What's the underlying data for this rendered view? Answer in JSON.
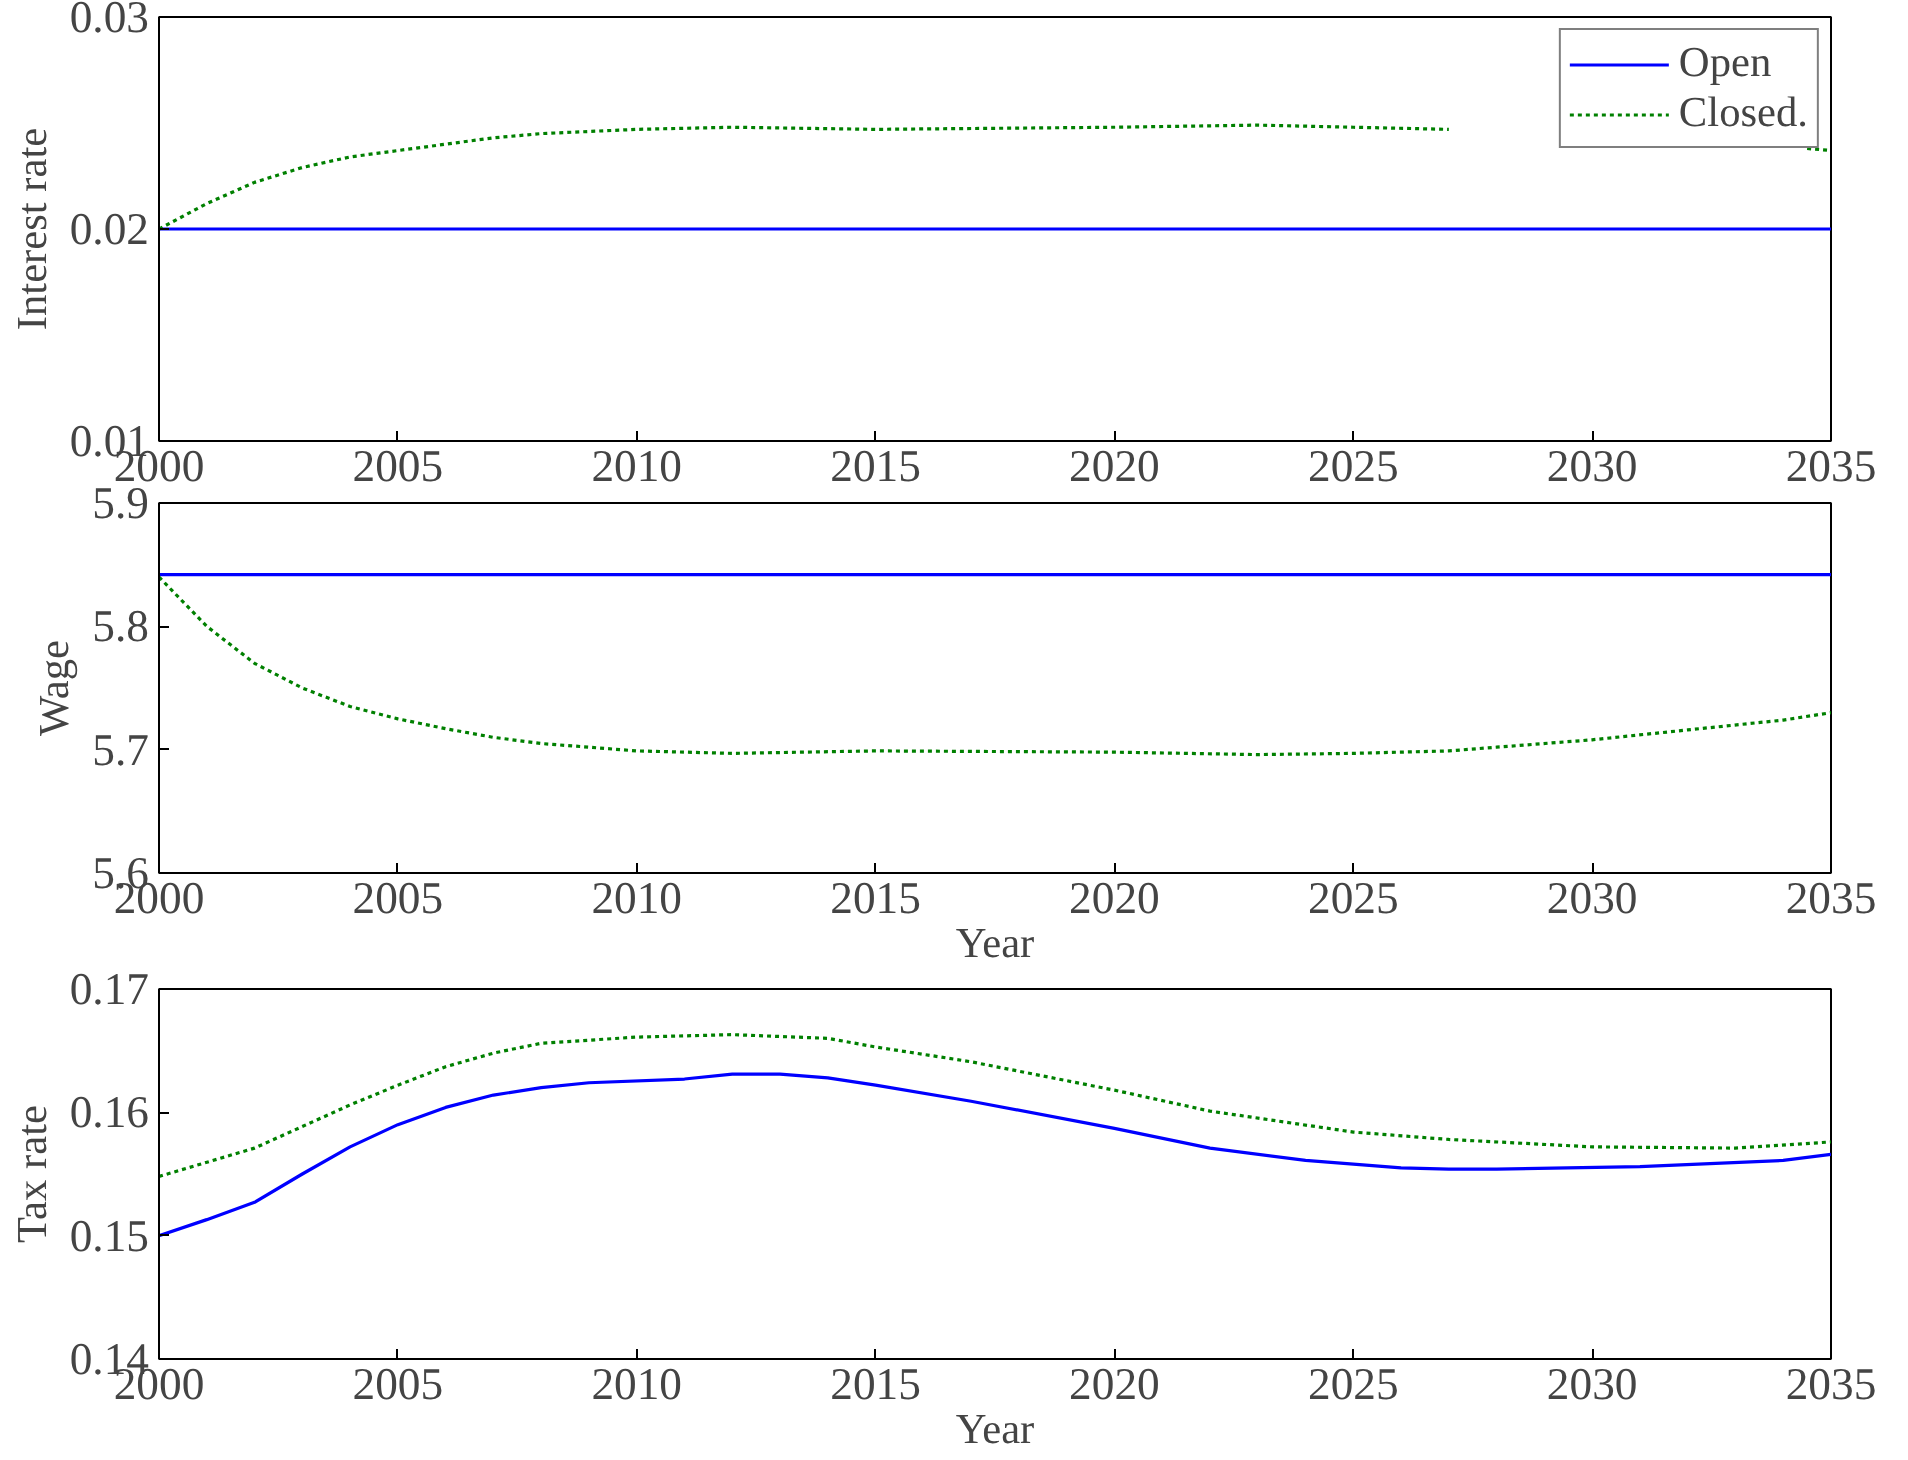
{
  "chart_data": [
    {
      "type": "line",
      "ylabel": "Interest rate",
      "x": [
        2000,
        2001,
        2002,
        2003,
        2004,
        2005,
        2006,
        2007,
        2008,
        2010,
        2012,
        2015,
        2020,
        2023,
        2025,
        2027,
        2030,
        2033,
        2034.5,
        2035
      ],
      "xlim": [
        2000,
        2035
      ],
      "ylim": [
        0.01,
        0.03
      ],
      "xticks": [
        2000,
        2005,
        2010,
        2015,
        2020,
        2025,
        2030,
        2035
      ],
      "yticks": [
        0.01,
        0.02,
        0.03
      ],
      "legend": "top right",
      "series": [
        {
          "name": "Open",
          "color": "#0000ff",
          "line_style": "solid",
          "values": [
            0.02,
            0.02,
            0.02,
            0.02,
            0.02,
            0.02,
            0.02,
            0.02,
            0.02,
            0.02,
            0.02,
            0.02,
            0.02,
            0.02,
            0.02,
            0.02,
            0.02,
            0.02,
            0.02,
            0.02
          ]
        },
        {
          "name": "Closed.",
          "color": "#008000",
          "line_style": "dotted",
          "values": [
            0.02,
            0.0212,
            0.0222,
            0.0229,
            0.0234,
            0.0237,
            0.024,
            0.0243,
            0.0245,
            0.0247,
            0.0248,
            0.0247,
            0.0248,
            0.0249,
            0.0248,
            0.0247,
            null,
            null,
            0.0238,
            0.0237
          ]
        }
      ]
    },
    {
      "type": "line",
      "ylabel": "Wage",
      "xlabel": "Year",
      "x": [
        2000,
        2001,
        2002,
        2003,
        2004,
        2005,
        2006,
        2007,
        2008,
        2010,
        2012,
        2015,
        2020,
        2023,
        2025,
        2027,
        2028,
        2030,
        2032,
        2034,
        2035
      ],
      "xlim": [
        2000,
        2035
      ],
      "ylim": [
        5.6,
        5.9
      ],
      "xticks": [
        2000,
        2005,
        2010,
        2015,
        2020,
        2025,
        2030,
        2035
      ],
      "yticks": [
        5.6,
        5.7,
        5.8,
        5.9
      ],
      "series": [
        {
          "color": "#0000ff",
          "line_style": "solid",
          "values": [
            5.842,
            5.842,
            5.842,
            5.842,
            5.842,
            5.842,
            5.842,
            5.842,
            5.842,
            5.842,
            5.842,
            5.842,
            5.842,
            5.842,
            5.842,
            5.842,
            5.842,
            5.842,
            5.842,
            5.842,
            5.842
          ]
        },
        {
          "color": "#008000",
          "line_style": "dotted",
          "values": [
            5.84,
            5.8,
            5.77,
            5.75,
            5.735,
            5.725,
            5.717,
            5.71,
            5.705,
            5.699,
            5.697,
            5.699,
            5.698,
            5.696,
            5.697,
            5.699,
            5.702,
            5.708,
            5.716,
            5.724,
            5.73
          ]
        }
      ]
    },
    {
      "type": "line",
      "ylabel": "Tax rate",
      "xlabel": "Year",
      "xlim": [
        2000,
        2035
      ],
      "ylim": [
        0.14,
        0.17
      ],
      "xticks": [
        2000,
        2005,
        2010,
        2015,
        2020,
        2025,
        2030,
        2035
      ],
      "yticks": [
        0.14,
        0.15,
        0.16,
        0.17
      ],
      "series": [
        {
          "color": "#0000ff",
          "line_style": "solid",
          "x": [
            2000,
            2001,
            2002,
            2003,
            2004,
            2005,
            2006,
            2007,
            2008,
            2009,
            2011,
            2012,
            2013,
            2014,
            2015,
            2017,
            2020,
            2022,
            2024,
            2026,
            2027,
            2028,
            2031,
            2034,
            2035
          ],
          "values": [
            0.15,
            0.1513,
            0.1527,
            0.155,
            0.1572,
            0.159,
            0.1604,
            0.1614,
            0.162,
            0.1624,
            0.1627,
            0.1631,
            0.1631,
            0.1628,
            0.1622,
            0.1609,
            0.1587,
            0.1571,
            0.1561,
            0.1555,
            0.1554,
            0.1554,
            0.1556,
            0.1561,
            0.1566
          ]
        },
        {
          "color": "#008000",
          "line_style": "dotted",
          "x": [
            2000,
            2002,
            2004,
            2005,
            2006,
            2007,
            2008,
            2010,
            2012,
            2014,
            2015,
            2017,
            2020,
            2022,
            2025,
            2027,
            2030,
            2033,
            2035
          ],
          "values": [
            0.1548,
            0.1571,
            0.1606,
            0.1622,
            0.1637,
            0.1648,
            0.1656,
            0.1661,
            0.1663,
            0.166,
            0.1653,
            0.1641,
            0.1618,
            0.1601,
            0.1584,
            0.1578,
            0.1572,
            0.1571,
            0.1576
          ]
        }
      ]
    }
  ]
}
